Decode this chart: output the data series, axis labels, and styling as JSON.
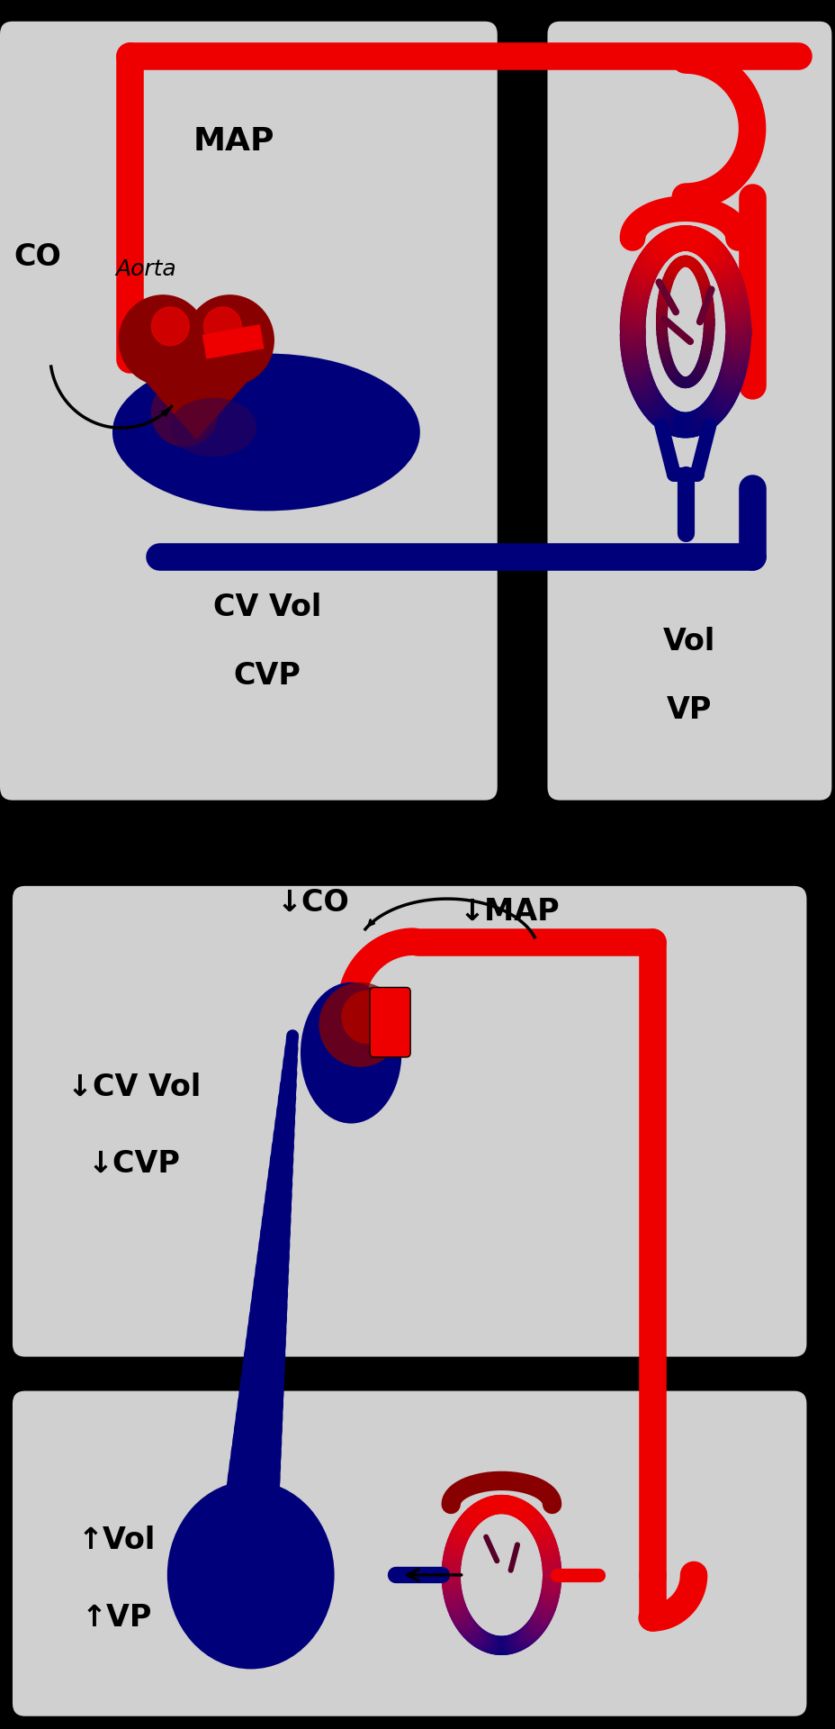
{
  "bg_color": "#000000",
  "panel_bg": "#d0d0d0",
  "red": "#ee0000",
  "dark_red": "#880000",
  "very_dark_red": "#550000",
  "dark_blue": "#00007a",
  "mid_purple": "#4a0040",
  "text_color": "#000000",
  "figsize": [
    9.29,
    19.2
  ],
  "dpi": 100,
  "panel1": {
    "label_map": "MAP",
    "label_co": "CO",
    "label_aorta": "Aorta",
    "label_cvvol": "CV Vol",
    "label_cvp": "CVP",
    "label_vol": "Vol",
    "label_vp": "VP"
  },
  "panel2": {
    "label_co": "↓CO",
    "label_map": "↓MAP",
    "label_cvvol": "↓CV Vol",
    "label_cvp": "↓CVP",
    "label_vol": "↑Vol",
    "label_vp": "↑VP"
  }
}
